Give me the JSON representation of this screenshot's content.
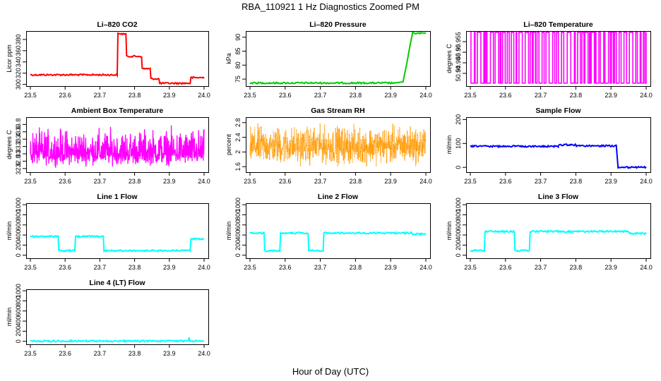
{
  "figure": {
    "title": "RBA_110921  1 Hz Diagnostics Zoomed PM",
    "xlabel": "Hour of Day (UTC)"
  },
  "chart_data": [
    {
      "type": "line",
      "title": "Li–820 CO2",
      "ylabel": "Licor ppm",
      "color": "#ff0000",
      "style": "line",
      "xlim": [
        23.5,
        24.0
      ],
      "xticks": [
        "23.5",
        "23.6",
        "23.7",
        "23.8",
        "23.9",
        "24.0"
      ],
      "ylim": [
        297,
        395
      ],
      "yticks": [
        300,
        320,
        340,
        360,
        380
      ],
      "series": [
        {
          "name": "CO2",
          "points": [
            [
              23.5,
              317
            ],
            [
              23.75,
              317
            ],
            [
              23.752,
              390
            ],
            [
              23.775,
              390
            ],
            [
              23.777,
              350
            ],
            [
              23.82,
              350
            ],
            [
              23.822,
              328
            ],
            [
              23.845,
              328
            ],
            [
              23.847,
              310
            ],
            [
              23.87,
              310
            ],
            [
              23.872,
              302
            ],
            [
              23.96,
              302
            ],
            [
              23.962,
              312
            ],
            [
              24.0,
              312
            ]
          ]
        }
      ]
    },
    {
      "type": "line",
      "title": "Li–820 Pressure",
      "ylabel": "kPa",
      "color": "#00cc00",
      "style": "line",
      "xlim": [
        23.5,
        24.0
      ],
      "xticks": [
        "23.5",
        "23.6",
        "23.7",
        "23.8",
        "23.9",
        "24.0"
      ],
      "ylim": [
        72.5,
        92.2
      ],
      "yticks": [
        75,
        80,
        85,
        90
      ],
      "series": [
        {
          "name": "Pressure",
          "points": [
            [
              23.5,
              73.6
            ],
            [
              23.91,
              73.6
            ],
            [
              23.935,
              74.0
            ],
            [
              23.945,
              80.0
            ],
            [
              23.955,
              87.0
            ],
            [
              23.962,
              91.4
            ],
            [
              24.0,
              91.4
            ]
          ]
        }
      ]
    },
    {
      "type": "line",
      "title": "Li–820 Temperature",
      "ylabel": "degrees C",
      "color": "#ff00ff",
      "style": "toggle",
      "xlim": [
        23.5,
        24.0
      ],
      "xticks": [
        "23.5",
        "23.6",
        "23.7",
        "23.8",
        "23.9",
        "24.0"
      ],
      "ylim": [
        50.934,
        50.96
      ],
      "yticks": [
        50.94,
        50.945,
        50.95,
        50.955
      ],
      "values": {
        "low": 50.9354,
        "high": 50.9594
      }
    },
    {
      "type": "line",
      "title": "Ambient Box Temperature",
      "ylabel": "degrees C",
      "color": "#ff00ff",
      "style": "noise",
      "xlim": [
        23.5,
        24.0
      ],
      "xticks": [
        "23.5",
        "23.6",
        "23.7",
        "23.8",
        "23.9",
        "24.0"
      ],
      "ylim": [
        32.5,
        34.0
      ],
      "yticks": [
        32.6,
        32.8,
        33.0,
        33.2,
        33.4,
        33.6,
        33.8
      ],
      "values": {
        "mean": 33.0,
        "min": 32.6,
        "max": 33.9
      }
    },
    {
      "type": "scatter",
      "title": "Gas Stream RH",
      "ylabel": "percent",
      "color": "#ff9900",
      "style": "dots",
      "xlim": [
        23.5,
        24.0
      ],
      "xticks": [
        "23.5",
        "23.6",
        "23.7",
        "23.8",
        "23.9",
        "24.0"
      ],
      "ylim": [
        1.45,
        2.95
      ],
      "yticks": [
        1.6,
        2.0,
        2.4,
        2.8
      ],
      "values": {
        "mean": 2.15,
        "min": 1.5,
        "max": 2.9
      }
    },
    {
      "type": "line",
      "title": "Sample Flow",
      "ylabel": "ml/min",
      "color": "#0000ff",
      "style": "line",
      "xlim": [
        23.5,
        24.0
      ],
      "xticks": [
        "23.5",
        "23.6",
        "23.7",
        "23.8",
        "23.9",
        "24.0"
      ],
      "ylim": [
        -20,
        210
      ],
      "yticks": [
        0,
        100,
        200
      ],
      "series": [
        {
          "name": "Flow",
          "points": [
            [
              23.5,
              88
            ],
            [
              23.75,
              88
            ],
            [
              23.752,
              94
            ],
            [
              23.8,
              94
            ],
            [
              23.802,
              90
            ],
            [
              23.915,
              90
            ],
            [
              23.92,
              0
            ],
            [
              24.0,
              0
            ]
          ]
        }
      ]
    },
    {
      "type": "line",
      "title": "Line 1 Flow",
      "ylabel": "ml/min",
      "color": "#00ffff",
      "style": "line",
      "xlim": [
        23.5,
        24.0
      ],
      "xticks": [
        "23.5",
        "23.6",
        "23.7",
        "23.8",
        "23.9",
        "24.0"
      ],
      "ylim": [
        -60,
        1030
      ],
      "yticks": [
        0,
        200,
        400,
        600,
        800,
        1000
      ],
      "series": [
        {
          "name": "Line 1",
          "points": [
            [
              23.5,
              370
            ],
            [
              23.58,
              370
            ],
            [
              23.582,
              90
            ],
            [
              23.628,
              90
            ],
            [
              23.63,
              370
            ],
            [
              23.71,
              370
            ],
            [
              23.712,
              90
            ],
            [
              23.96,
              90
            ],
            [
              23.962,
              320
            ],
            [
              24.0,
              320
            ]
          ]
        }
      ]
    },
    {
      "type": "line",
      "title": "Line 2 Flow",
      "ylabel": "ml/min",
      "color": "#00ffff",
      "style": "line",
      "xlim": [
        23.5,
        24.0
      ],
      "xticks": [
        "23.5",
        "23.6",
        "23.7",
        "23.8",
        "23.9",
        "24.0"
      ],
      "ylim": [
        -60,
        1030
      ],
      "yticks": [
        0,
        200,
        400,
        600,
        800,
        1000
      ],
      "series": [
        {
          "name": "Line 2",
          "points": [
            [
              23.5,
              440
            ],
            [
              23.54,
              440
            ],
            [
              23.542,
              90
            ],
            [
              23.585,
              90
            ],
            [
              23.587,
              440
            ],
            [
              23.665,
              440
            ],
            [
              23.667,
              90
            ],
            [
              23.708,
              90
            ],
            [
              23.71,
              440
            ],
            [
              23.96,
              440
            ],
            [
              23.962,
              420
            ],
            [
              24.0,
              420
            ]
          ]
        }
      ]
    },
    {
      "type": "line",
      "title": "Line 3 Flow",
      "ylabel": "ml/min",
      "color": "#00ffff",
      "style": "line",
      "xlim": [
        23.5,
        24.0
      ],
      "xticks": [
        "23.5",
        "23.6",
        "23.7",
        "23.8",
        "23.9",
        "24.0"
      ],
      "ylim": [
        -60,
        1030
      ],
      "yticks": [
        0,
        200,
        400,
        600,
        800,
        1000
      ],
      "series": [
        {
          "name": "Line 3",
          "points": [
            [
              23.5,
              90
            ],
            [
              23.54,
              90
            ],
            [
              23.542,
              470
            ],
            [
              23.625,
              470
            ],
            [
              23.627,
              90
            ],
            [
              23.668,
              90
            ],
            [
              23.67,
              470
            ],
            [
              23.95,
              470
            ],
            [
              23.952,
              430
            ],
            [
              24.0,
              430
            ]
          ]
        }
      ]
    },
    {
      "type": "line",
      "title": "Line 4 (LT) Flow",
      "ylabel": "ml/min",
      "color": "#00ffff",
      "style": "line",
      "xlim": [
        23.5,
        24.0
      ],
      "xticks": [
        "23.5",
        "23.6",
        "23.7",
        "23.8",
        "23.9",
        "24.0"
      ],
      "ylim": [
        -60,
        1030
      ],
      "yticks": [
        0,
        200,
        400,
        600,
        800,
        1000
      ],
      "series": [
        {
          "name": "Line 4",
          "points": [
            [
              23.5,
              5
            ],
            [
              23.955,
              5
            ],
            [
              23.957,
              80
            ],
            [
              23.959,
              5
            ],
            [
              24.0,
              5
            ]
          ]
        }
      ]
    }
  ]
}
